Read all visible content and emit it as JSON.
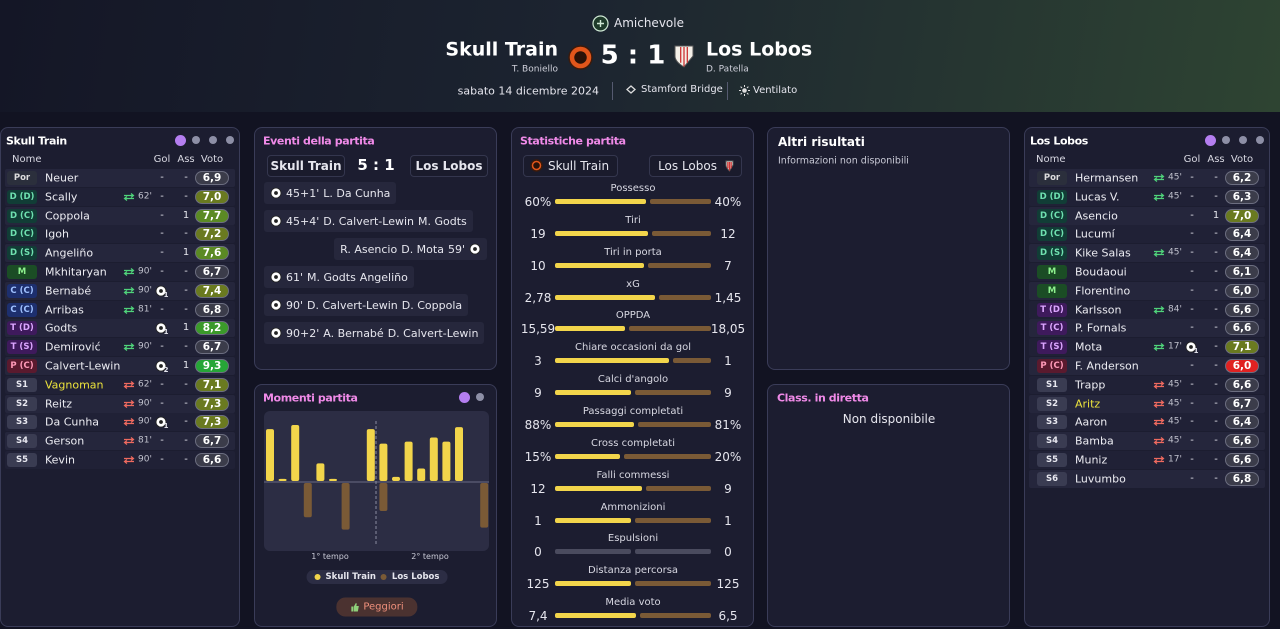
{
  "header": {
    "competition": "Amichevole",
    "home": {
      "name": "Skull Train",
      "manager": "T. Boniello"
    },
    "score": "5 : 1",
    "away": {
      "name": "Los Lobos",
      "manager": "D. Patella"
    },
    "date": "sabato 14 dicembre 2024",
    "stadium": "Stamford Bridge",
    "weather": "Ventilato"
  },
  "home_lineup": {
    "title": "Skull Train",
    "columns": [
      "Nome",
      "Gol",
      "Ass",
      "Voto"
    ],
    "rows": [
      {
        "pos": "Por",
        "name": "Neuer",
        "gol": "-",
        "ass": "-",
        "rating": "6,9"
      },
      {
        "pos": "D (D)",
        "name": "Scally",
        "sub": "62'",
        "gol": "-",
        "ass": "-",
        "rating": "7,0"
      },
      {
        "pos": "D (C)",
        "name": "Coppola",
        "gol": "-",
        "ass": "1",
        "rating": "7,7"
      },
      {
        "pos": "D (C)",
        "name": "Igoh",
        "gol": "-",
        "ass": "-",
        "rating": "7,2"
      },
      {
        "pos": "D (S)",
        "name": "Angeliño",
        "gol": "-",
        "ass": "1",
        "rating": "7,6"
      },
      {
        "pos": "M",
        "name": "Mkhitaryan",
        "sub": "90'",
        "gol": "-",
        "ass": "-",
        "rating": "6,7"
      },
      {
        "pos": "C (C)",
        "name": "Bernabé",
        "sub": "90'",
        "gol": "1",
        "ass": "-",
        "rating": "7,4"
      },
      {
        "pos": "C (C)",
        "name": "Arribas",
        "sub": "81'",
        "gol": "-",
        "ass": "-",
        "rating": "6,8"
      },
      {
        "pos": "T (D)",
        "name": "Godts",
        "gol": "1",
        "ass": "1",
        "rating": "8,2"
      },
      {
        "pos": "T (S)",
        "name": "Demirović",
        "sub": "90'",
        "gol": "-",
        "ass": "-",
        "rating": "6,7"
      },
      {
        "pos": "P (C)",
        "name": "Calvert-Lewin",
        "gol": "2",
        "ass": "1",
        "rating": "9,3"
      },
      {
        "pos": "S1",
        "name": "Vagnoman",
        "name_color": "#ece33c",
        "sub": "62'",
        "gol": "-",
        "ass": "-",
        "rating": "7,1"
      },
      {
        "pos": "S2",
        "name": "Reitz",
        "sub": "90'",
        "gol": "-",
        "ass": "-",
        "rating": "7,3"
      },
      {
        "pos": "S3",
        "name": "Da Cunha",
        "sub": "90'",
        "gol": "1",
        "ass": "-",
        "rating": "7,3"
      },
      {
        "pos": "S4",
        "name": "Gerson",
        "sub": "81'",
        "gol": "-",
        "ass": "-",
        "rating": "6,7"
      },
      {
        "pos": "S5",
        "name": "Kevin",
        "sub": "90'",
        "gol": "-",
        "ass": "-",
        "rating": "6,6"
      }
    ]
  },
  "away_lineup": {
    "title": "Los Lobos",
    "columns": [
      "Nome",
      "Gol",
      "Ass",
      "Voto"
    ],
    "rows": [
      {
        "pos": "Por",
        "name": "Hermansen",
        "sub": "45'",
        "gol": "-",
        "ass": "-",
        "rating": "6,2"
      },
      {
        "pos": "D (D)",
        "name": "Lucas V.",
        "sub": "45'",
        "gol": "-",
        "ass": "-",
        "rating": "6,3"
      },
      {
        "pos": "D (C)",
        "name": "Asencio",
        "gol": "-",
        "ass": "1",
        "rating": "7,0"
      },
      {
        "pos": "D (C)",
        "name": "Lucumí",
        "gol": "-",
        "ass": "-",
        "rating": "6,4"
      },
      {
        "pos": "D (S)",
        "name": "Kike Salas",
        "sub": "45'",
        "gol": "-",
        "ass": "-",
        "rating": "6,4"
      },
      {
        "pos": "M",
        "name": "Boudaoui",
        "gol": "-",
        "ass": "-",
        "rating": "6,1"
      },
      {
        "pos": "M",
        "name": "Florentino",
        "gol": "-",
        "ass": "-",
        "rating": "6,0"
      },
      {
        "pos": "T (D)",
        "name": "Karlsson",
        "sub": "84'",
        "gol": "-",
        "ass": "-",
        "rating": "6,6"
      },
      {
        "pos": "T (C)",
        "name": "P. Fornals",
        "gol": "-",
        "ass": "-",
        "rating": "6,6"
      },
      {
        "pos": "T (S)",
        "name": "Mota",
        "sub": "17'",
        "gol": "1",
        "ass": "-",
        "rating": "7,1"
      },
      {
        "pos": "P (C)",
        "name": "F. Anderson",
        "gol": "-",
        "ass": "-",
        "rating": "6,0",
        "rating_color": "#e02222"
      },
      {
        "pos": "S1",
        "name": "Trapp",
        "sub": "45'",
        "gol": "-",
        "ass": "-",
        "rating": "6,6"
      },
      {
        "pos": "S2",
        "name": "Aritz",
        "name_color": "#ece33c",
        "sub": "45'",
        "gol": "-",
        "ass": "-",
        "rating": "6,7"
      },
      {
        "pos": "S3",
        "name": "Aaron",
        "sub": "45'",
        "gol": "-",
        "ass": "-",
        "rating": "6,4"
      },
      {
        "pos": "S4",
        "name": "Bamba",
        "sub": "45'",
        "gol": "-",
        "ass": "-",
        "rating": "6,6"
      },
      {
        "pos": "S5",
        "name": "Muniz",
        "sub": "17'",
        "gol": "-",
        "ass": "-",
        "rating": "6,6"
      },
      {
        "pos": "S6",
        "name": "Luvumbo",
        "gol": "-",
        "ass": "-",
        "rating": "6,8"
      }
    ]
  },
  "events": {
    "title": "Eventi della partita",
    "home": "Skull Train",
    "score": "5 : 1",
    "away": "Los Lobos",
    "items": [
      {
        "side": "home",
        "minute": "45+1'",
        "players": [
          "L. Da Cunha"
        ]
      },
      {
        "side": "home",
        "minute": "45+4'",
        "players": [
          "D. Calvert-Lewin",
          "M. Godts"
        ]
      },
      {
        "side": "away",
        "minute": "59'",
        "players": [
          "R. Asencio",
          "D. Mota"
        ]
      },
      {
        "side": "home",
        "minute": "61'",
        "players": [
          "M. Godts",
          "Angeliño"
        ]
      },
      {
        "side": "home",
        "minute": "90'",
        "players": [
          "D. Calvert-Lewin",
          "D. Coppola"
        ]
      },
      {
        "side": "home",
        "minute": "90+2'",
        "players": [
          "A. Bernabé",
          "D. Calvert-Lewin"
        ]
      }
    ]
  },
  "momentum": {
    "title": "Momenti partita",
    "home": [
      50,
      2,
      54,
      0,
      17,
      2,
      0,
      0,
      50,
      36,
      4,
      38,
      12,
      42,
      38,
      52,
      0,
      0
    ],
    "away": [
      0,
      0,
      0,
      33,
      0,
      0,
      45,
      0,
      0,
      27,
      0,
      0,
      0,
      0,
      0,
      0,
      0,
      43
    ],
    "home_color": "#f2d54b",
    "away_color": "#7a5a36",
    "periods": [
      "1° tempo",
      "2° tempo"
    ],
    "legend": [
      "Skull Train",
      "Los Lobos"
    ],
    "button": "Peggiori"
  },
  "stats": {
    "title": "Statistiche partita",
    "home": "Skull Train",
    "away": "Los Lobos",
    "home_color": "#f2d54b",
    "away_color": "#7a5a36",
    "items": [
      {
        "label": "Possesso",
        "values": [
          60,
          40
        ],
        "value_labels": [
          "60%",
          "40%"
        ]
      },
      {
        "label": "Tiri",
        "values": [
          19,
          12
        ]
      },
      {
        "label": "Tiri in porta",
        "values": [
          10,
          7
        ]
      },
      {
        "label": "xG",
        "values": [
          2.78,
          1.45
        ],
        "value_labels": [
          "2,78",
          "1,45"
        ]
      },
      {
        "label": "OPPDA",
        "values": [
          15.59,
          18.05
        ],
        "value_labels": [
          "15,59",
          "18,05"
        ]
      },
      {
        "label": "Chiare occasioni da gol",
        "values": [
          3,
          1
        ]
      },
      {
        "label": "Calci d'angolo",
        "values": [
          9,
          9
        ]
      },
      {
        "label": "Passaggi completati",
        "values": [
          88,
          81
        ],
        "value_labels": [
          "88%",
          "81%"
        ]
      },
      {
        "label": "Cross completati",
        "values": [
          15,
          20
        ],
        "value_labels": [
          "15%",
          "20%"
        ]
      },
      {
        "label": "Falli commessi",
        "values": [
          12,
          9
        ]
      },
      {
        "label": "Ammonizioni",
        "values": [
          1,
          1
        ]
      },
      {
        "label": "Espulsioni",
        "values": [
          0,
          0
        ]
      },
      {
        "label": "Distanza percorsa",
        "values": [
          125,
          125
        ]
      },
      {
        "label": "Media voto",
        "values": [
          7.4,
          6.5
        ],
        "value_labels": [
          "7,4",
          "6,5"
        ]
      }
    ]
  },
  "other_results": {
    "title": "Altri risultati",
    "text": "Informazioni non disponibili"
  },
  "live_table": {
    "title": "Class. in diretta",
    "text": "Non disponibile"
  }
}
